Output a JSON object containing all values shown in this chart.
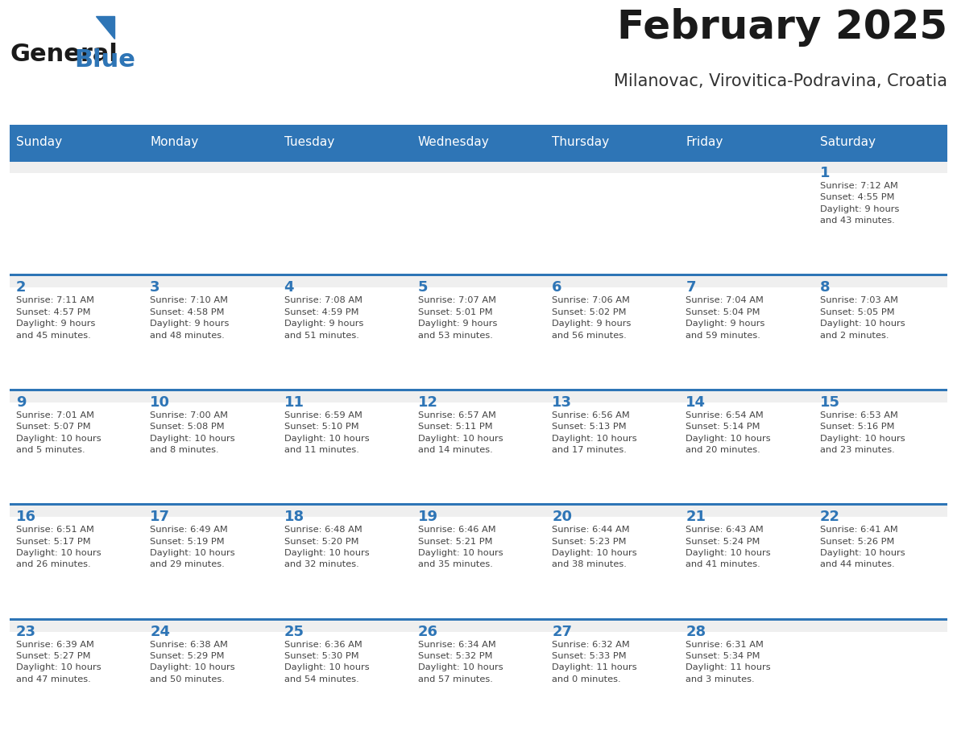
{
  "title": "February 2025",
  "subtitle": "Milanovac, Virovitica-Podravina, Croatia",
  "days_of_week": [
    "Sunday",
    "Monday",
    "Tuesday",
    "Wednesday",
    "Thursday",
    "Friday",
    "Saturday"
  ],
  "header_bg": "#2E75B6",
  "header_text": "#FFFFFF",
  "cell_bg": "#FFFFFF",
  "first_row_bg": "#EFEFEF",
  "grid_line_color": "#2E75B6",
  "title_color": "#1A1A1A",
  "subtitle_color": "#333333",
  "day_num_color": "#2E75B6",
  "cell_text_color": "#444444",
  "logo_general_color": "#1A1A1A",
  "logo_blue_color": "#2E75B6",
  "weeks": [
    {
      "days": [
        {
          "date": null,
          "info": null
        },
        {
          "date": null,
          "info": null
        },
        {
          "date": null,
          "info": null
        },
        {
          "date": null,
          "info": null
        },
        {
          "date": null,
          "info": null
        },
        {
          "date": null,
          "info": null
        },
        {
          "date": 1,
          "info": "Sunrise: 7:12 AM\nSunset: 4:55 PM\nDaylight: 9 hours\nand 43 minutes."
        }
      ]
    },
    {
      "days": [
        {
          "date": 2,
          "info": "Sunrise: 7:11 AM\nSunset: 4:57 PM\nDaylight: 9 hours\nand 45 minutes."
        },
        {
          "date": 3,
          "info": "Sunrise: 7:10 AM\nSunset: 4:58 PM\nDaylight: 9 hours\nand 48 minutes."
        },
        {
          "date": 4,
          "info": "Sunrise: 7:08 AM\nSunset: 4:59 PM\nDaylight: 9 hours\nand 51 minutes."
        },
        {
          "date": 5,
          "info": "Sunrise: 7:07 AM\nSunset: 5:01 PM\nDaylight: 9 hours\nand 53 minutes."
        },
        {
          "date": 6,
          "info": "Sunrise: 7:06 AM\nSunset: 5:02 PM\nDaylight: 9 hours\nand 56 minutes."
        },
        {
          "date": 7,
          "info": "Sunrise: 7:04 AM\nSunset: 5:04 PM\nDaylight: 9 hours\nand 59 minutes."
        },
        {
          "date": 8,
          "info": "Sunrise: 7:03 AM\nSunset: 5:05 PM\nDaylight: 10 hours\nand 2 minutes."
        }
      ]
    },
    {
      "days": [
        {
          "date": 9,
          "info": "Sunrise: 7:01 AM\nSunset: 5:07 PM\nDaylight: 10 hours\nand 5 minutes."
        },
        {
          "date": 10,
          "info": "Sunrise: 7:00 AM\nSunset: 5:08 PM\nDaylight: 10 hours\nand 8 minutes."
        },
        {
          "date": 11,
          "info": "Sunrise: 6:59 AM\nSunset: 5:10 PM\nDaylight: 10 hours\nand 11 minutes."
        },
        {
          "date": 12,
          "info": "Sunrise: 6:57 AM\nSunset: 5:11 PM\nDaylight: 10 hours\nand 14 minutes."
        },
        {
          "date": 13,
          "info": "Sunrise: 6:56 AM\nSunset: 5:13 PM\nDaylight: 10 hours\nand 17 minutes."
        },
        {
          "date": 14,
          "info": "Sunrise: 6:54 AM\nSunset: 5:14 PM\nDaylight: 10 hours\nand 20 minutes."
        },
        {
          "date": 15,
          "info": "Sunrise: 6:53 AM\nSunset: 5:16 PM\nDaylight: 10 hours\nand 23 minutes."
        }
      ]
    },
    {
      "days": [
        {
          "date": 16,
          "info": "Sunrise: 6:51 AM\nSunset: 5:17 PM\nDaylight: 10 hours\nand 26 minutes."
        },
        {
          "date": 17,
          "info": "Sunrise: 6:49 AM\nSunset: 5:19 PM\nDaylight: 10 hours\nand 29 minutes."
        },
        {
          "date": 18,
          "info": "Sunrise: 6:48 AM\nSunset: 5:20 PM\nDaylight: 10 hours\nand 32 minutes."
        },
        {
          "date": 19,
          "info": "Sunrise: 6:46 AM\nSunset: 5:21 PM\nDaylight: 10 hours\nand 35 minutes."
        },
        {
          "date": 20,
          "info": "Sunrise: 6:44 AM\nSunset: 5:23 PM\nDaylight: 10 hours\nand 38 minutes."
        },
        {
          "date": 21,
          "info": "Sunrise: 6:43 AM\nSunset: 5:24 PM\nDaylight: 10 hours\nand 41 minutes."
        },
        {
          "date": 22,
          "info": "Sunrise: 6:41 AM\nSunset: 5:26 PM\nDaylight: 10 hours\nand 44 minutes."
        }
      ]
    },
    {
      "days": [
        {
          "date": 23,
          "info": "Sunrise: 6:39 AM\nSunset: 5:27 PM\nDaylight: 10 hours\nand 47 minutes."
        },
        {
          "date": 24,
          "info": "Sunrise: 6:38 AM\nSunset: 5:29 PM\nDaylight: 10 hours\nand 50 minutes."
        },
        {
          "date": 25,
          "info": "Sunrise: 6:36 AM\nSunset: 5:30 PM\nDaylight: 10 hours\nand 54 minutes."
        },
        {
          "date": 26,
          "info": "Sunrise: 6:34 AM\nSunset: 5:32 PM\nDaylight: 10 hours\nand 57 minutes."
        },
        {
          "date": 27,
          "info": "Sunrise: 6:32 AM\nSunset: 5:33 PM\nDaylight: 11 hours\nand 0 minutes."
        },
        {
          "date": 28,
          "info": "Sunrise: 6:31 AM\nSunset: 5:34 PM\nDaylight: 11 hours\nand 3 minutes."
        },
        {
          "date": null,
          "info": null
        }
      ]
    }
  ]
}
